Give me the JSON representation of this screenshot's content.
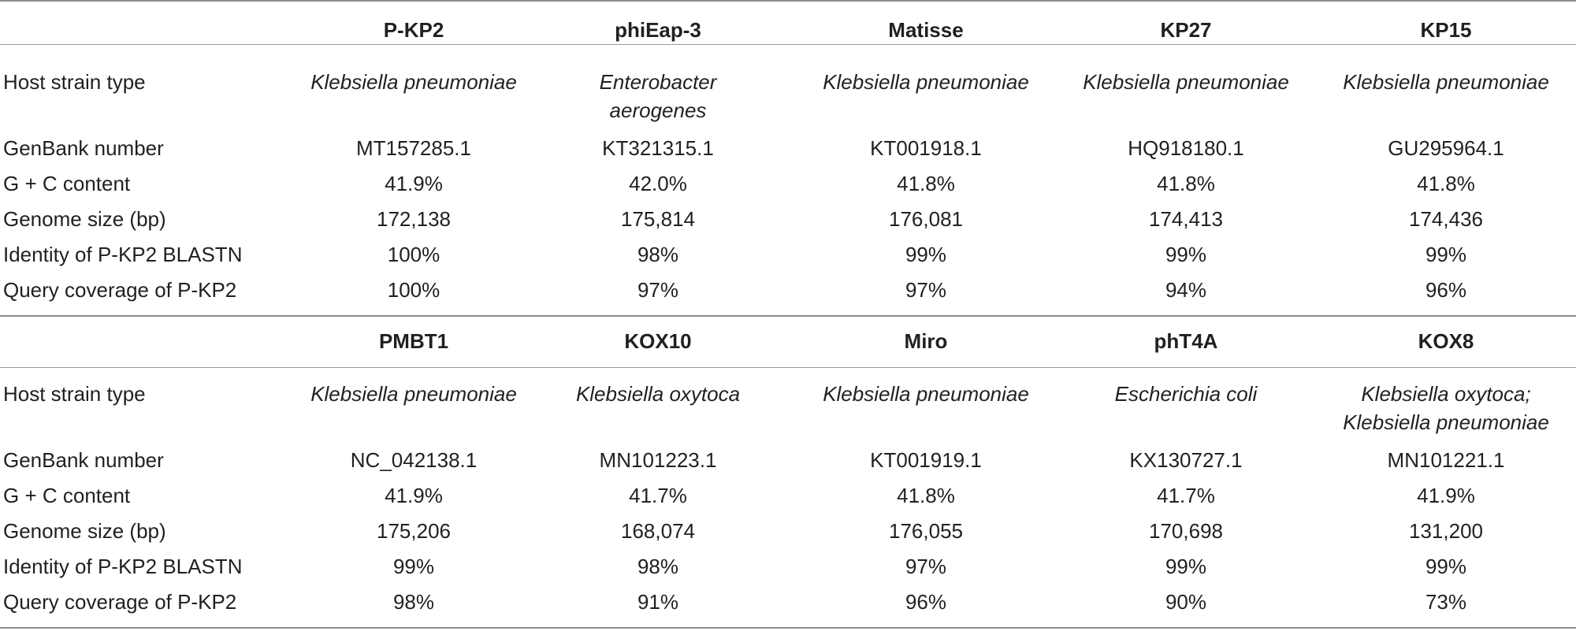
{
  "table": {
    "row_labels": [
      "Host strain type",
      "GenBank number",
      "G + C content",
      "Genome size (bp)",
      "Identity of P-KP2 BLASTN",
      "Query coverage of P-KP2"
    ],
    "section1": {
      "headers": [
        "P-KP2",
        "phiEap-3",
        "Matisse",
        "KP27",
        "KP15"
      ],
      "host": [
        [
          "Klebsiella pneumoniae"
        ],
        [
          "Enterobacter",
          "aerogenes"
        ],
        [
          "Klebsiella pneumoniae"
        ],
        [
          "Klebsiella pneumoniae"
        ],
        [
          "Klebsiella pneumoniae"
        ]
      ],
      "genbank": [
        "MT157285.1",
        "KT321315.1",
        "KT001918.1",
        "HQ918180.1",
        "GU295964.1"
      ],
      "gc": [
        "41.9%",
        "42.0%",
        "41.8%",
        "41.8%",
        "41.8%"
      ],
      "size": [
        "172,138",
        "175,814",
        "176,081",
        "174,413",
        "174,436"
      ],
      "identity": [
        "100%",
        "98%",
        "99%",
        "99%",
        "99%"
      ],
      "coverage": [
        "100%",
        "97%",
        "97%",
        "94%",
        "96%"
      ]
    },
    "section2": {
      "headers": [
        "PMBT1",
        "KOX10",
        "Miro",
        "phT4A",
        "KOX8"
      ],
      "host": [
        [
          "Klebsiella pneumoniae"
        ],
        [
          "Klebsiella oxytoca"
        ],
        [
          "Klebsiella pneumoniae"
        ],
        [
          "Escherichia coli"
        ],
        [
          "Klebsiella oxytoca;",
          "Klebsiella pneumoniae"
        ]
      ],
      "genbank": [
        "NC_042138.1",
        "MN101223.1",
        "KT001919.1",
        "KX130727.1",
        "MN101221.1"
      ],
      "gc": [
        "41.9%",
        "41.7%",
        "41.8%",
        "41.7%",
        "41.9%"
      ],
      "size": [
        "175,206",
        "168,074",
        "176,055",
        "170,698",
        "131,200"
      ],
      "identity": [
        "99%",
        "98%",
        "97%",
        "99%",
        "99%"
      ],
      "coverage": [
        "98%",
        "91%",
        "96%",
        "90%",
        "73%"
      ]
    }
  }
}
